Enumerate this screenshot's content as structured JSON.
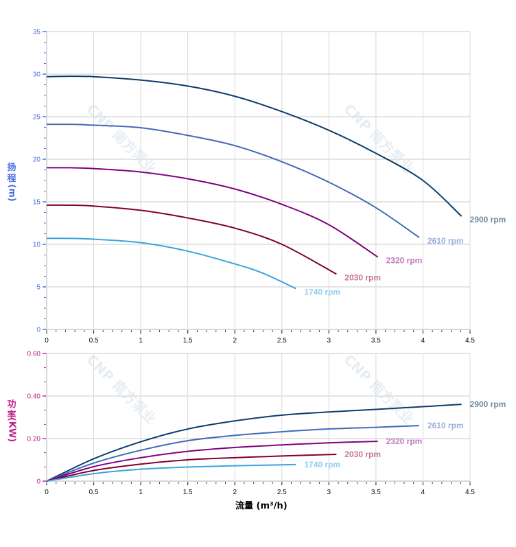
{
  "watermark": "CNP 南方泵业",
  "chart_data": [
    {
      "type": "line",
      "ylabel_chars": [
        "扬",
        "程"
      ],
      "ylabel_unit": "(m)",
      "xlim": [
        0,
        4.5
      ],
      "ylim": [
        0,
        35
      ],
      "xticks": [
        "0",
        "0.5",
        "1",
        "1.5",
        "2",
        "2.5",
        "3",
        "3.5",
        "4",
        "4.5"
      ],
      "yticks": [
        "0",
        "5",
        "10",
        "15",
        "20",
        "25",
        "30",
        "35"
      ],
      "grid": true,
      "tick_color": "#4a6ee0",
      "series": [
        {
          "name": "2900 rpm",
          "color": "#0b3c6b",
          "label_color": "#6f8a9e",
          "x": [
            0,
            0.25,
            0.5,
            1,
            1.5,
            2,
            2.5,
            3,
            3.5,
            4,
            4.41
          ],
          "y": [
            29.7,
            29.75,
            29.7,
            29.3,
            28.6,
            27.4,
            25.6,
            23.4,
            20.7,
            17.5,
            13.3
          ]
        },
        {
          "name": "2610 rpm",
          "color": "#4169b8",
          "label_color": "#98aedc",
          "x": [
            0,
            0.25,
            0.5,
            1,
            1.5,
            2,
            2.5,
            3,
            3.5,
            3.96
          ],
          "y": [
            24.1,
            24.1,
            24.0,
            23.7,
            22.8,
            21.6,
            19.7,
            17.3,
            14.3,
            10.8
          ]
        },
        {
          "name": "2320 rpm",
          "color": "#800080",
          "label_color": "#c27ac2",
          "x": [
            0,
            0.25,
            0.5,
            1,
            1.5,
            2,
            2.5,
            3,
            3.52
          ],
          "y": [
            19.0,
            19.0,
            18.9,
            18.5,
            17.7,
            16.5,
            14.7,
            12.3,
            8.5
          ]
        },
        {
          "name": "2030 rpm",
          "color": "#80002e",
          "label_color": "#c47a8c",
          "x": [
            0,
            0.25,
            0.5,
            1,
            1.5,
            2,
            2.5,
            3.08
          ],
          "y": [
            14.6,
            14.6,
            14.5,
            14.0,
            13.1,
            11.9,
            10.0,
            6.5
          ]
        },
        {
          "name": "1740 rpm",
          "color": "#3aa3e0",
          "label_color": "#92ccf2",
          "x": [
            0,
            0.25,
            0.5,
            1,
            1.5,
            2,
            2.3,
            2.65
          ],
          "y": [
            10.7,
            10.7,
            10.6,
            10.2,
            9.2,
            7.7,
            6.6,
            4.8
          ]
        }
      ]
    },
    {
      "type": "line",
      "ylabel_chars": [
        "功",
        "率"
      ],
      "ylabel_unit": "(KW)",
      "xlabel": "流量 (m³/h)",
      "xlim": [
        0,
        4.5
      ],
      "ylim": [
        0,
        0.6
      ],
      "xticks": [
        "0",
        "0.5",
        "1",
        "1.5",
        "2",
        "2.5",
        "3",
        "3.5",
        "4",
        "4.5"
      ],
      "yticks": [
        "0",
        "0.20",
        "0.40",
        "0.60"
      ],
      "grid": true,
      "tick_color": "#c0208c",
      "series": [
        {
          "name": "2900 rpm",
          "color": "#0b3c6b",
          "label_color": "#6f8a9e",
          "x": [
            0,
            0.5,
            1,
            1.5,
            2,
            2.5,
            3,
            3.5,
            4,
            4.41
          ],
          "y": [
            0,
            0.105,
            0.185,
            0.245,
            0.283,
            0.31,
            0.325,
            0.337,
            0.35,
            0.361
          ]
        },
        {
          "name": "2610 rpm",
          "color": "#4169b8",
          "label_color": "#98aedc",
          "x": [
            0,
            0.5,
            1,
            1.5,
            2,
            2.5,
            3,
            3.5,
            3.96
          ],
          "y": [
            0,
            0.085,
            0.145,
            0.19,
            0.215,
            0.232,
            0.245,
            0.253,
            0.261
          ]
        },
        {
          "name": "2320 rpm",
          "color": "#800080",
          "label_color": "#c27ac2",
          "x": [
            0,
            0.5,
            1,
            1.5,
            2,
            2.5,
            3,
            3.52
          ],
          "y": [
            0,
            0.068,
            0.11,
            0.14,
            0.158,
            0.17,
            0.18,
            0.187
          ]
        },
        {
          "name": "2030 rpm",
          "color": "#80002e",
          "label_color": "#c47a8c",
          "x": [
            0,
            0.5,
            1,
            1.5,
            2,
            2.5,
            3.08
          ],
          "y": [
            0,
            0.05,
            0.08,
            0.1,
            0.11,
            0.118,
            0.126
          ]
        },
        {
          "name": "1740 rpm",
          "color": "#3aa3e0",
          "label_color": "#92ccf2",
          "x": [
            0,
            0.5,
            1,
            1.5,
            2,
            2.65
          ],
          "y": [
            0,
            0.035,
            0.056,
            0.066,
            0.072,
            0.078
          ]
        }
      ]
    }
  ]
}
